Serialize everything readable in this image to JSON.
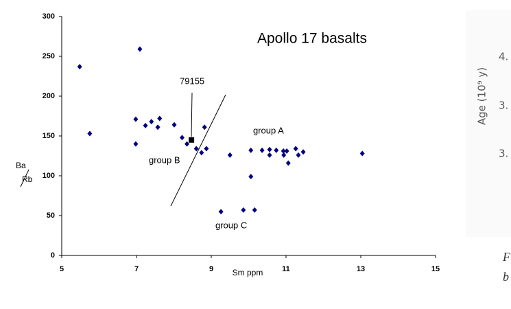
{
  "chart_data": {
    "type": "scatter",
    "title": "Apollo 17 basalts",
    "xlabel": "Sm ppm",
    "ylabel": {
      "top": "Ba",
      "bottom": "Rb"
    },
    "xlim": [
      5,
      15
    ],
    "xticks": [
      5,
      7,
      9,
      11,
      13,
      15
    ],
    "ylim": [
      0,
      300
    ],
    "yticks": [
      0,
      50,
      100,
      150,
      200,
      250,
      300
    ],
    "grid": false,
    "series": [
      {
        "color": "#00007f",
        "marker": "diamond",
        "x": [
          5.48,
          5.75,
          7.09,
          6.98,
          6.98,
          7.24,
          7.4,
          7.57,
          7.62,
          8.01,
          8.22,
          8.35,
          8.6,
          8.74,
          8.82,
          8.87,
          9.5,
          9.26,
          9.86,
          10.16,
          10.06,
          10.06,
          10.36,
          10.56,
          10.56,
          10.74,
          10.93,
          10.94,
          11.02,
          11.06,
          11.26,
          11.33,
          11.46,
          13.04
        ],
        "values": [
          237,
          153,
          259,
          171,
          140,
          163,
          168,
          161,
          172,
          164,
          148,
          140,
          134,
          129,
          161,
          134,
          126,
          55,
          57,
          57,
          99,
          132,
          132,
          133,
          126,
          132,
          131,
          126,
          131,
          116,
          134,
          126,
          130,
          128
        ]
      },
      {
        "name": "79155",
        "color": "#000000",
        "marker": "square",
        "x": [
          8.47
        ],
        "values": [
          145
        ]
      }
    ],
    "annotations": [
      "group A",
      "group B",
      "group C"
    ]
  },
  "side_panel": {
    "axis_label": "Age (10⁹ y)",
    "tick_labels": [
      "4.",
      "3.",
      "3."
    ],
    "caption": [
      "F",
      "b"
    ]
  }
}
